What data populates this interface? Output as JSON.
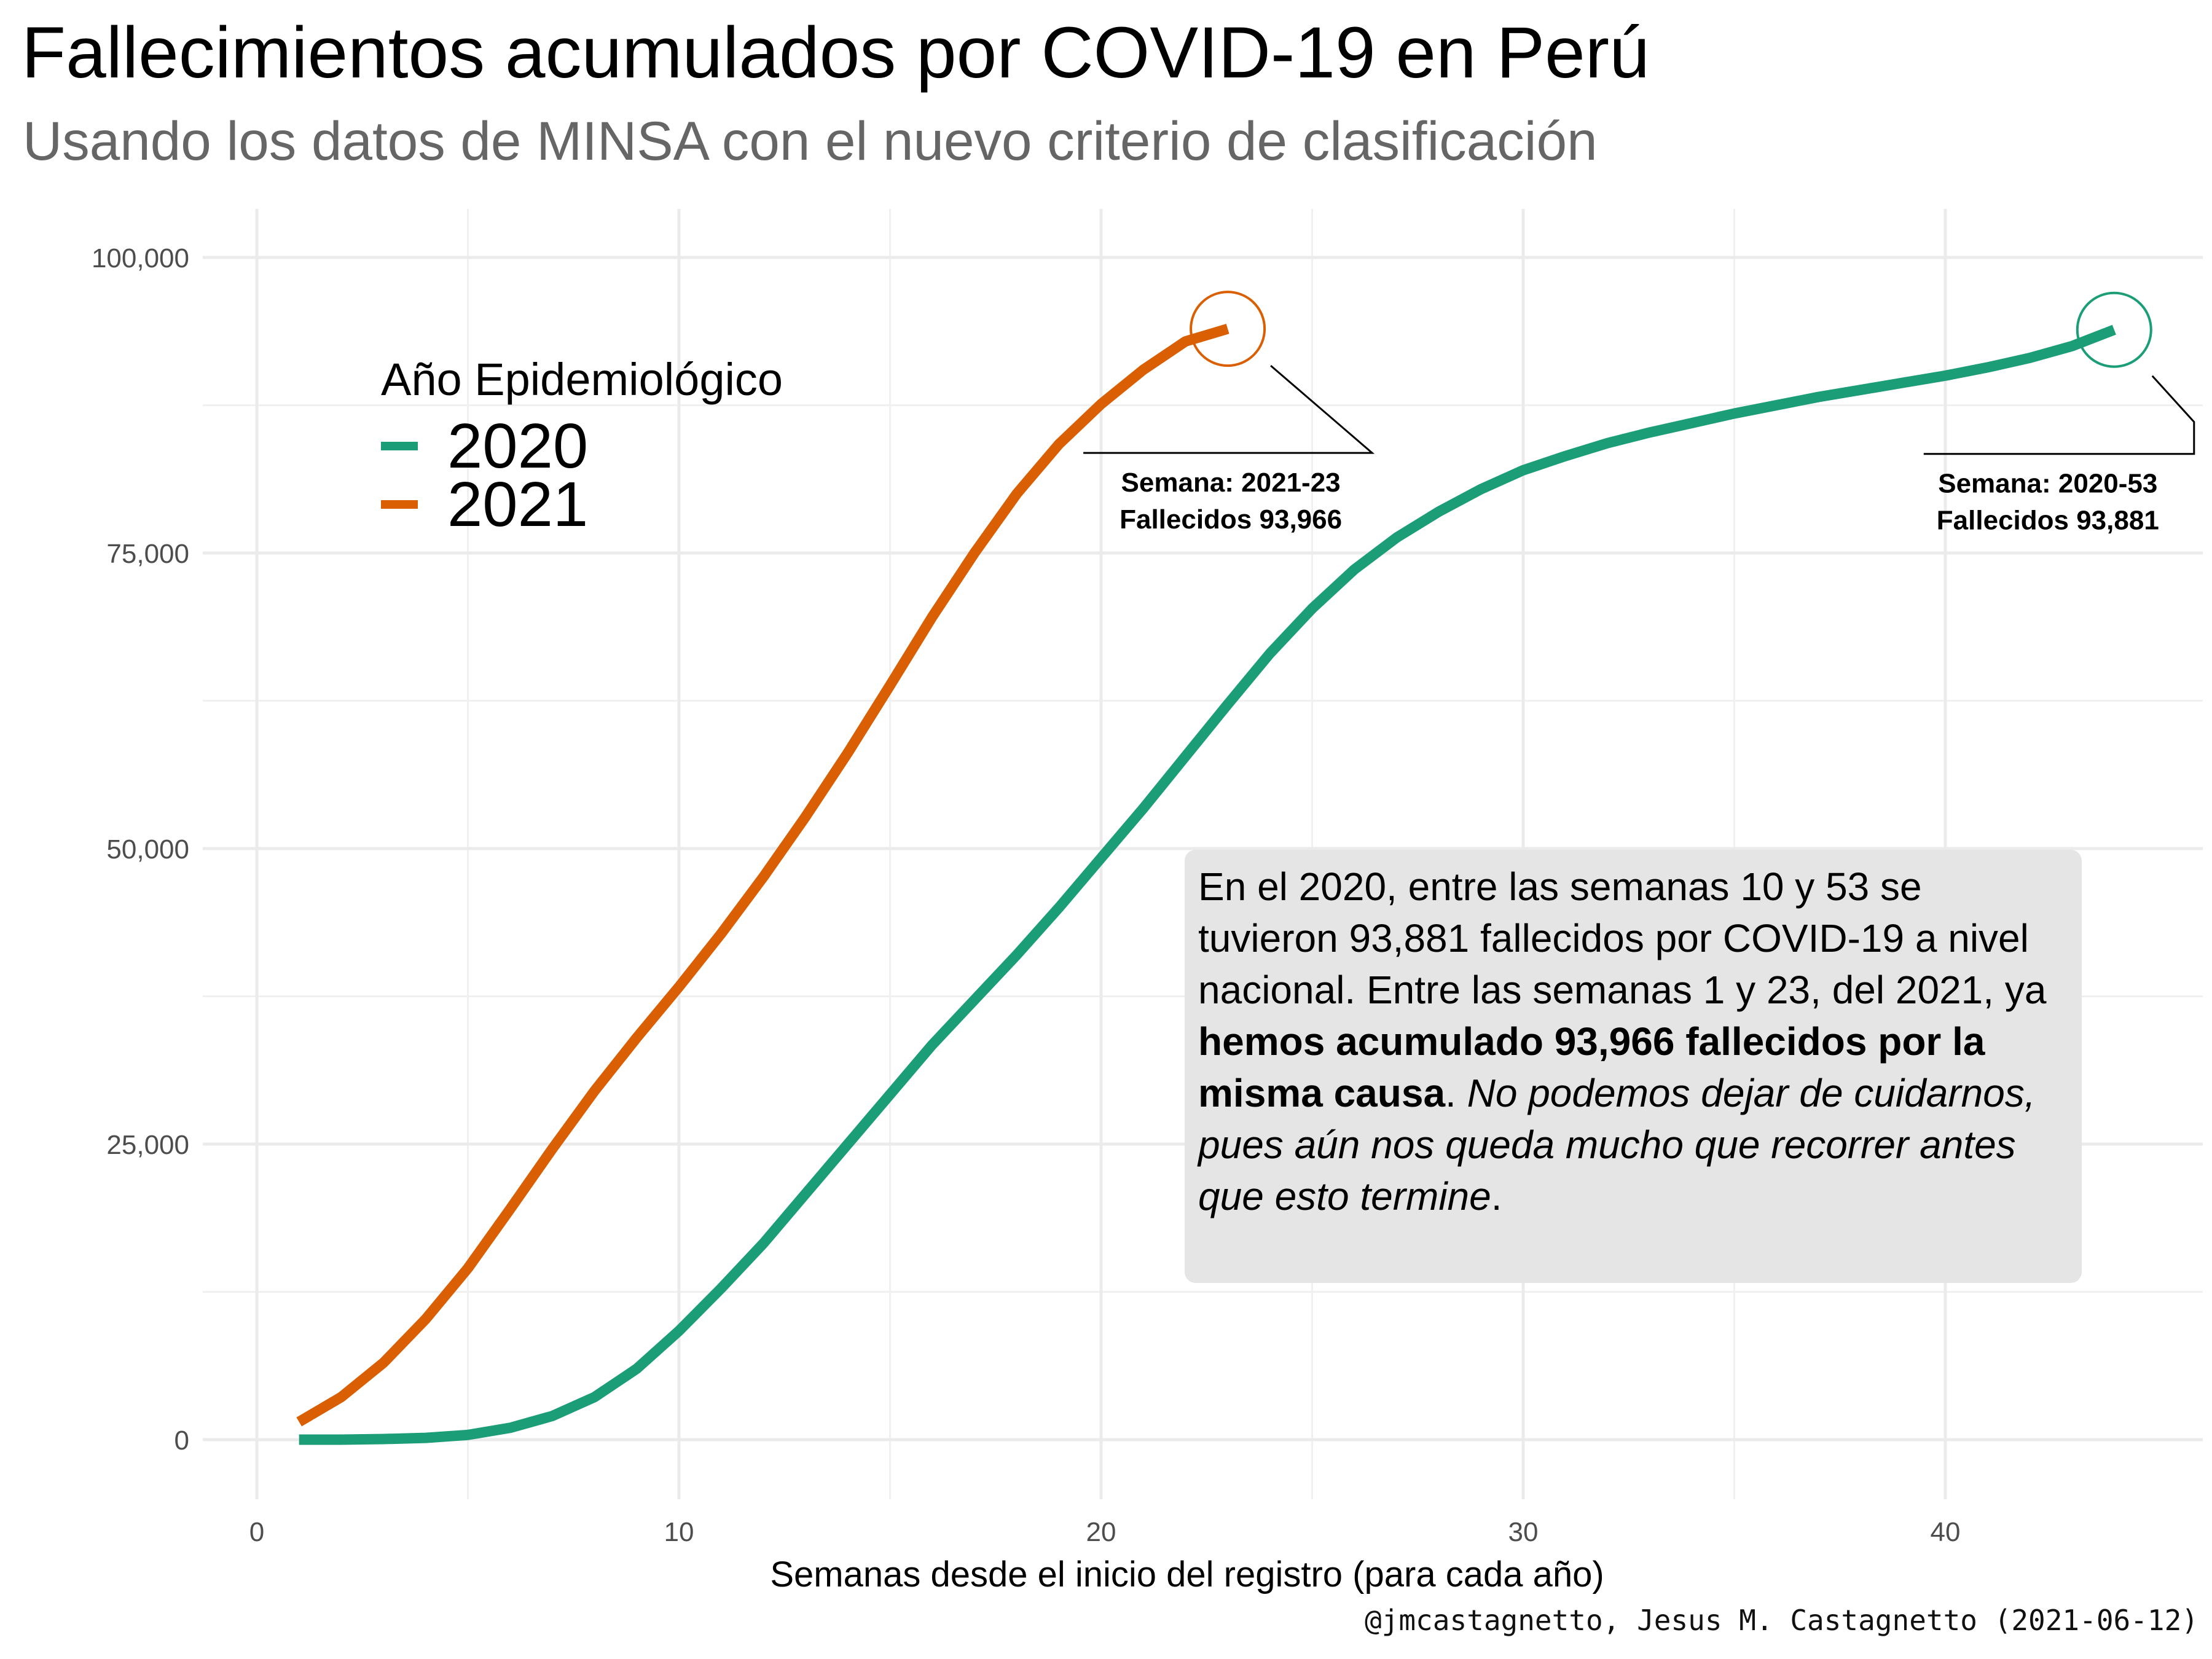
{
  "chart_data": {
    "type": "line",
    "title": "Fallecimientos acumulados por COVID-19 en Perú",
    "subtitle": "Usando los datos de MINSA con el nuevo criterio de clasificación",
    "xlabel": "Semanas desde el inicio del registro (para cada año)",
    "ylabel": "",
    "caption": "@jmcastagnetto, Jesus M. Castagnetto (2021-06-12)",
    "xlim": [
      0,
      45
    ],
    "ylim": [
      0,
      100000
    ],
    "x_ticks": [
      0,
      10,
      20,
      30,
      40
    ],
    "x_tick_labels": [
      "0",
      "10",
      "20",
      "30",
      "40"
    ],
    "y_ticks": [
      0,
      25000,
      50000,
      75000,
      100000
    ],
    "y_tick_labels": [
      "0",
      "25,000",
      "50,000",
      "75,000",
      "100,000"
    ],
    "grid": true,
    "legend": {
      "title": "Año Epidemiológico",
      "position": "top-left"
    },
    "series": [
      {
        "name": "2020",
        "color": "#1b9e77",
        "x": [
          1,
          2,
          3,
          4,
          5,
          6,
          7,
          8,
          9,
          10,
          11,
          12,
          13,
          14,
          15,
          16,
          17,
          18,
          19,
          20,
          21,
          22,
          23,
          24,
          25,
          26,
          27,
          28,
          29,
          30,
          31,
          32,
          33,
          34,
          35,
          36,
          37,
          38,
          39,
          40,
          41,
          42,
          43,
          44
        ],
        "y": [
          0,
          0,
          50,
          150,
          400,
          1000,
          2000,
          3600,
          6000,
          9200,
          12800,
          16600,
          20800,
          25000,
          29200,
          33400,
          37200,
          41000,
          45000,
          49200,
          53400,
          57800,
          62200,
          66500,
          70300,
          73600,
          76300,
          78500,
          80400,
          82000,
          83200,
          84300,
          85200,
          86000,
          86800,
          87500,
          88200,
          88800,
          89400,
          90000,
          90700,
          91500,
          92500,
          93881
        ]
      },
      {
        "name": "2021",
        "color": "#d95f02",
        "x": [
          1,
          2,
          3,
          4,
          5,
          6,
          7,
          8,
          9,
          10,
          11,
          12,
          13,
          14,
          15,
          16,
          17,
          18,
          19,
          20,
          21,
          22,
          23
        ],
        "y": [
          1500,
          3600,
          6500,
          10200,
          14500,
          19500,
          24600,
          29500,
          34000,
          38300,
          42800,
          47600,
          52700,
          58100,
          63800,
          69600,
          75000,
          80000,
          84200,
          87600,
          90500,
          92900,
          93966
        ]
      }
    ],
    "annotations": [
      {
        "series": "2021",
        "line1": "Semana: 2021-23",
        "line2": "Fallecidos 93,966"
      },
      {
        "series": "2020",
        "line1": "Semana: 2020-53",
        "line2": "Fallecidos 93,881"
      }
    ],
    "note": {
      "text1": "En el 2020, entre las semanas 10 y 53 se tuvieron 93,881 fallecidos por COVID-19 a nivel nacional. Entre las semanas 1 y 23, del 2021, ya ",
      "bold": "hemos acumulado 93,966 fallecidos por la misma causa",
      "text2": ". ",
      "italic": "No podemos dejar de cuidarnos, pues aún nos queda mucho que recorrer antes que esto termine",
      "text3": "."
    }
  }
}
